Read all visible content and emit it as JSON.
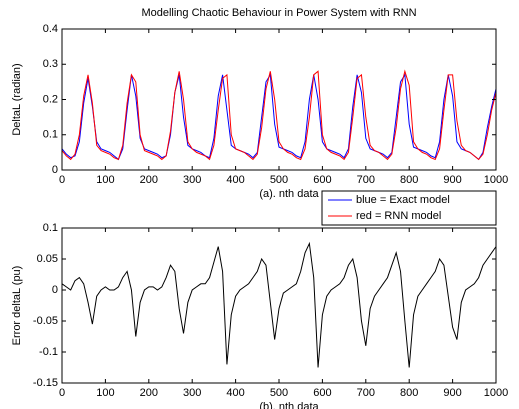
{
  "chart_data": [
    {
      "type": "line",
      "title": "Modelling Chaotic Behaviour in Power System with RNN",
      "ylabel": "DeltaL (radian)",
      "xlabel": "(a).  nth data",
      "xlim": [
        0,
        1000
      ],
      "xticks": [
        0,
        100,
        200,
        300,
        400,
        500,
        600,
        700,
        800,
        900,
        1000
      ],
      "ylim": [
        0,
        0.4
      ],
      "yticks": [
        0,
        0.1,
        0.2,
        0.3,
        0.4
      ],
      "grid": false,
      "legend": "southeastoutside",
      "x": [
        0,
        10,
        20,
        30,
        40,
        50,
        60,
        70,
        80,
        90,
        100,
        110,
        120,
        130,
        140,
        150,
        160,
        170,
        180,
        190,
        200,
        210,
        220,
        230,
        240,
        250,
        260,
        270,
        280,
        290,
        300,
        310,
        320,
        330,
        340,
        350,
        360,
        370,
        380,
        390,
        400,
        410,
        420,
        430,
        440,
        450,
        460,
        470,
        480,
        490,
        500,
        510,
        520,
        530,
        540,
        550,
        560,
        570,
        580,
        590,
        600,
        610,
        620,
        630,
        640,
        650,
        660,
        670,
        680,
        690,
        700,
        710,
        720,
        730,
        740,
        750,
        760,
        770,
        780,
        790,
        800,
        810,
        820,
        830,
        840,
        850,
        860,
        870,
        880,
        890,
        900,
        910,
        920,
        930,
        940,
        950,
        960,
        970,
        980,
        990,
        1000
      ],
      "series": [
        {
          "name": "blue = Exact model",
          "color": "#0000ff",
          "values": [
            0.06,
            0.045,
            0.035,
            0.04,
            0.08,
            0.19,
            0.26,
            0.18,
            0.08,
            0.06,
            0.055,
            0.05,
            0.04,
            0.03,
            0.06,
            0.17,
            0.27,
            0.21,
            0.09,
            0.06,
            0.055,
            0.05,
            0.045,
            0.035,
            0.04,
            0.1,
            0.22,
            0.27,
            0.15,
            0.07,
            0.06,
            0.055,
            0.05,
            0.04,
            0.035,
            0.09,
            0.21,
            0.27,
            0.17,
            0.07,
            0.06,
            0.055,
            0.05,
            0.045,
            0.035,
            0.05,
            0.15,
            0.25,
            0.27,
            0.13,
            0.065,
            0.06,
            0.055,
            0.05,
            0.04,
            0.035,
            0.08,
            0.2,
            0.27,
            0.2,
            0.08,
            0.06,
            0.055,
            0.05,
            0.045,
            0.035,
            0.06,
            0.18,
            0.27,
            0.22,
            0.09,
            0.06,
            0.055,
            0.05,
            0.045,
            0.035,
            0.05,
            0.15,
            0.25,
            0.27,
            0.13,
            0.065,
            0.06,
            0.055,
            0.05,
            0.04,
            0.035,
            0.08,
            0.2,
            0.27,
            0.21,
            0.08,
            0.06,
            0.055,
            0.05,
            0.04,
            0.03,
            0.05,
            0.12,
            0.18,
            0.23
          ]
        },
        {
          "name": "red = RNN model",
          "color": "#ff0000",
          "values": [
            0.055,
            0.04,
            0.03,
            0.045,
            0.1,
            0.21,
            0.27,
            0.19,
            0.07,
            0.055,
            0.05,
            0.045,
            0.035,
            0.03,
            0.07,
            0.19,
            0.27,
            0.25,
            0.1,
            0.055,
            0.05,
            0.045,
            0.04,
            0.03,
            0.04,
            0.11,
            0.22,
            0.28,
            0.2,
            0.08,
            0.06,
            0.05,
            0.045,
            0.04,
            0.03,
            0.07,
            0.17,
            0.26,
            0.27,
            0.1,
            0.06,
            0.055,
            0.05,
            0.04,
            0.03,
            0.045,
            0.12,
            0.23,
            0.28,
            0.2,
            0.08,
            0.06,
            0.05,
            0.045,
            0.035,
            0.03,
            0.06,
            0.15,
            0.27,
            0.28,
            0.1,
            0.06,
            0.05,
            0.045,
            0.04,
            0.03,
            0.05,
            0.15,
            0.26,
            0.27,
            0.15,
            0.07,
            0.055,
            0.05,
            0.04,
            0.03,
            0.045,
            0.12,
            0.23,
            0.28,
            0.24,
            0.08,
            0.06,
            0.05,
            0.045,
            0.035,
            0.03,
            0.06,
            0.17,
            0.27,
            0.27,
            0.14,
            0.07,
            0.055,
            0.05,
            0.04,
            0.03,
            0.045,
            0.1,
            0.17,
            0.22
          ]
        }
      ]
    },
    {
      "type": "line",
      "ylabel": "Error deltaL (pu)",
      "xlabel": "(b).  nth data",
      "xlim": [
        0,
        1000
      ],
      "xticks": [
        0,
        100,
        200,
        300,
        400,
        500,
        600,
        700,
        800,
        900,
        1000
      ],
      "ylim": [
        -0.15,
        0.1
      ],
      "yticks": [
        -0.15,
        -0.1,
        -0.05,
        0,
        0.05,
        0.1
      ],
      "grid": false,
      "x": [
        0,
        10,
        20,
        30,
        40,
        50,
        60,
        70,
        80,
        90,
        100,
        110,
        120,
        130,
        140,
        150,
        160,
        170,
        180,
        190,
        200,
        210,
        220,
        230,
        240,
        250,
        260,
        270,
        280,
        290,
        300,
        310,
        320,
        330,
        340,
        350,
        360,
        370,
        380,
        390,
        400,
        410,
        420,
        430,
        440,
        450,
        460,
        470,
        480,
        490,
        500,
        510,
        520,
        530,
        540,
        550,
        560,
        570,
        580,
        590,
        600,
        610,
        620,
        630,
        640,
        650,
        660,
        670,
        680,
        690,
        700,
        710,
        720,
        730,
        740,
        750,
        760,
        770,
        780,
        790,
        800,
        810,
        820,
        830,
        840,
        850,
        860,
        870,
        880,
        890,
        900,
        910,
        920,
        930,
        940,
        950,
        960,
        970,
        980,
        990,
        1000
      ],
      "series": [
        {
          "color": "#000000",
          "values": [
            0.01,
            0.005,
            0.0,
            0.015,
            0.02,
            0.01,
            -0.02,
            -0.055,
            -0.01,
            0.0,
            0.005,
            0.0,
            0.0,
            0.005,
            0.02,
            0.03,
            0.0,
            -0.075,
            -0.02,
            0.0,
            0.005,
            0.005,
            0.0,
            0.005,
            0.02,
            0.04,
            0.03,
            -0.03,
            -0.07,
            -0.02,
            0.0,
            0.005,
            0.01,
            0.01,
            0.02,
            0.045,
            0.07,
            0.03,
            -0.12,
            -0.04,
            -0.01,
            0.0,
            0.005,
            0.01,
            0.02,
            0.03,
            0.05,
            0.04,
            -0.02,
            -0.08,
            -0.03,
            -0.005,
            0.0,
            0.005,
            0.01,
            0.03,
            0.06,
            0.075,
            0.02,
            -0.125,
            -0.04,
            -0.01,
            0.0,
            0.005,
            0.01,
            0.02,
            0.04,
            0.05,
            0.02,
            -0.05,
            -0.09,
            -0.03,
            -0.01,
            0.0,
            0.01,
            0.02,
            0.04,
            0.06,
            0.03,
            -0.05,
            -0.125,
            -0.04,
            -0.01,
            0.0,
            0.01,
            0.02,
            0.03,
            0.05,
            0.04,
            -0.01,
            -0.06,
            -0.08,
            -0.02,
            0.0,
            0.005,
            0.01,
            0.02,
            0.04,
            0.05,
            0.06,
            0.07
          ]
        }
      ]
    }
  ]
}
